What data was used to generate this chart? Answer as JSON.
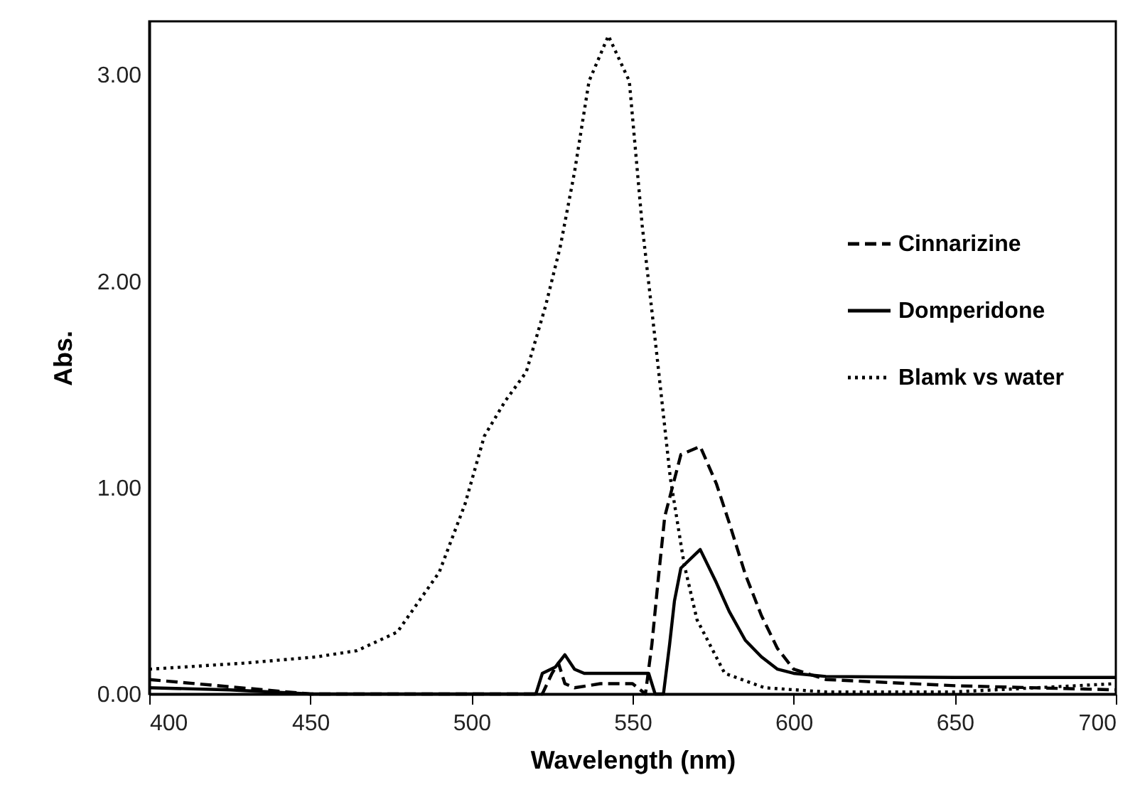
{
  "chart_data": {
    "type": "line",
    "xlabel": "Wavelength (nm)",
    "ylabel": "Abs.",
    "xlim": [
      400,
      700
    ],
    "xticks": [
      400,
      450,
      500,
      550,
      600,
      650,
      700
    ],
    "ylim": [
      0,
      3.26
    ],
    "yticks": [
      {
        "value": 0,
        "label": "0.00"
      },
      {
        "value": 1,
        "label": "1.00"
      },
      {
        "value": 2,
        "label": "2.00"
      },
      {
        "value": 3,
        "label": "3.00"
      }
    ],
    "grid": false,
    "legend": "top right",
    "series": [
      {
        "name": "Cinnarizine",
        "color": "#000000",
        "line_style": "dashed",
        "x": [
          400,
          425,
          450,
          485,
          522,
          525,
          527,
          529,
          532,
          540,
          550,
          554,
          556,
          558,
          560,
          565,
          571,
          576,
          580,
          585,
          590,
          595,
          600,
          610,
          650,
          700
        ],
        "values": [
          0.07,
          0.035,
          0,
          0,
          0,
          0.1,
          0.15,
          0.05,
          0.03,
          0.05,
          0.05,
          0,
          0.24,
          0.56,
          0.86,
          1.16,
          1.2,
          1.02,
          0.83,
          0.58,
          0.38,
          0.22,
          0.12,
          0.07,
          0.04,
          0.02
        ]
      },
      {
        "name": "Domperidone",
        "color": "#000000",
        "line_style": "solid",
        "x": [
          400,
          425,
          450,
          485,
          520,
          522,
          526,
          529,
          532,
          535,
          545,
          555,
          557,
          559.6,
          561.5,
          563,
          565,
          571,
          576,
          580,
          585,
          590,
          595,
          600,
          610,
          650,
          700
        ],
        "values": [
          0.03,
          0.02,
          0,
          0,
          0,
          0.1,
          0.13,
          0.19,
          0.12,
          0.1,
          0.1,
          0.1,
          0,
          0,
          0.24,
          0.45,
          0.61,
          0.7,
          0.54,
          0.4,
          0.26,
          0.18,
          0.12,
          0.1,
          0.085,
          0.08,
          0.08
        ]
      },
      {
        "name": "Blamk vs water",
        "color": "#000000",
        "line_style": "dotted",
        "x": [
          400,
          430,
          452,
          464.5,
          477,
          490,
          498,
          504,
          510.5,
          517,
          523,
          527.6,
          532,
          536.5,
          542.5,
          549,
          553,
          557.5,
          561.7,
          566,
          570,
          578.6,
          591,
          610,
          650,
          700
        ],
        "values": [
          0.12,
          0.15,
          0.18,
          0.21,
          0.3,
          0.59,
          0.92,
          1.25,
          1.42,
          1.56,
          1.88,
          2.17,
          2.53,
          2.97,
          3.19,
          2.97,
          2.27,
          1.65,
          1.05,
          0.63,
          0.36,
          0.1,
          0.03,
          0.01,
          0.01,
          0.05
        ]
      }
    ]
  }
}
